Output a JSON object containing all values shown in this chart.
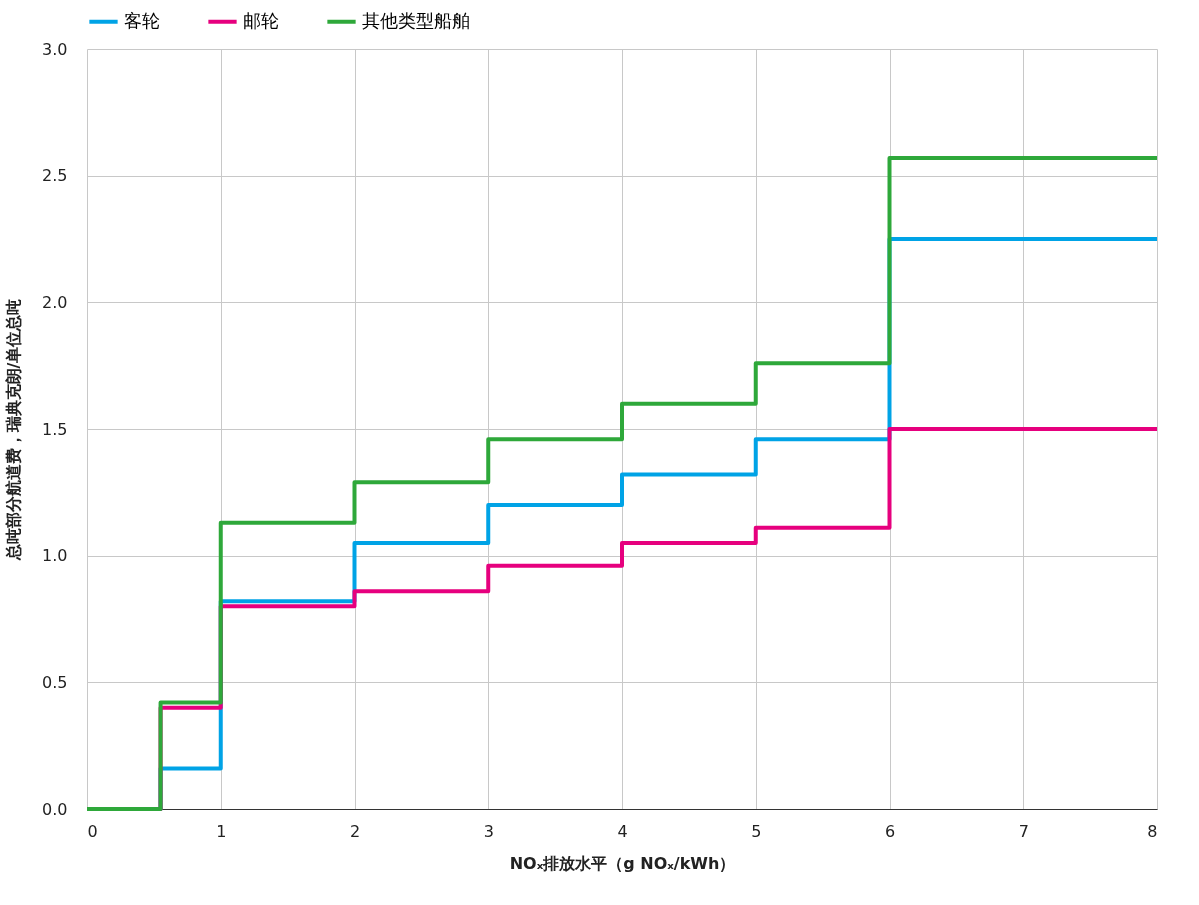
{
  "chart_data": {
    "type": "step",
    "xlabel": "NOₓ排放水平（g NOₓ/kWh）",
    "ylabel": "总吨部分航道费，瑞典克朗/单位总吨",
    "x": [
      0,
      0.55,
      1,
      2,
      3,
      4,
      5,
      6,
      8
    ],
    "series": [
      {
        "name": "客轮",
        "color": "#00a3e6",
        "values": [
          0,
          0.16,
          0.82,
          1.05,
          1.2,
          1.32,
          1.46,
          2.25,
          2.25
        ]
      },
      {
        "name": "邮轮",
        "color": "#e6007e",
        "values": [
          0,
          0.4,
          0.8,
          0.86,
          0.96,
          1.05,
          1.11,
          1.5,
          1.5
        ]
      },
      {
        "name": "其他类型船舶",
        "color": "#2ea83a",
        "values": [
          0,
          0.42,
          1.13,
          1.29,
          1.46,
          1.6,
          1.76,
          2.57,
          2.57
        ]
      }
    ],
    "xlim": [
      0,
      8
    ],
    "xticks": [
      0,
      1,
      2,
      3,
      4,
      5,
      6,
      7,
      8
    ],
    "ylim": [
      0,
      3
    ],
    "yticks": [
      {
        "value": 0,
        "label": "0.0"
      },
      0.5,
      {
        "value": 1,
        "label": "1.0"
      },
      1.5,
      {
        "value": 2,
        "label": "2.0"
      },
      2.5,
      {
        "value": 3,
        "label": "3.0"
      }
    ],
    "grid": true,
    "legend": "top",
    "line_style": "solid",
    "marker": "none"
  }
}
